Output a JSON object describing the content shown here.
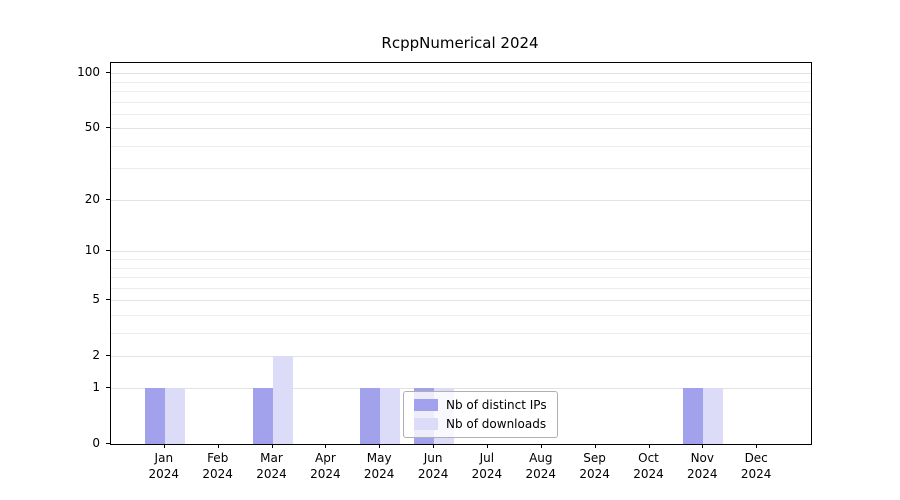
{
  "chart_data": {
    "type": "bar",
    "title": "RcppNumerical 2024",
    "xlabel": "",
    "ylabel": "",
    "categories": [
      "Jan 2024",
      "Feb 2024",
      "Mar 2024",
      "Apr 2024",
      "May 2024",
      "Jun 2024",
      "Jul 2024",
      "Aug 2024",
      "Sep 2024",
      "Oct 2024",
      "Nov 2024",
      "Dec 2024"
    ],
    "series": [
      {
        "name": "Nb of distinct IPs",
        "color": "#a1a1ec",
        "values": [
          1,
          0,
          1,
          0,
          1,
          1,
          0,
          0,
          0,
          0,
          1,
          0
        ]
      },
      {
        "name": "Nb of downloads",
        "color": "#dcdcf8",
        "values": [
          1,
          0,
          2,
          0,
          1,
          1,
          0,
          0,
          0,
          0,
          1,
          0
        ]
      }
    ],
    "yscale": "log1p",
    "yticks": [
      0,
      1,
      2,
      5,
      10,
      20,
      50,
      100
    ],
    "minor_gridlines": [
      3,
      4,
      6,
      7,
      8,
      9,
      30,
      40,
      60,
      70,
      80,
      90
    ],
    "ylim": [
      0,
      117
    ],
    "grid": true,
    "legend_position": "lower center"
  }
}
